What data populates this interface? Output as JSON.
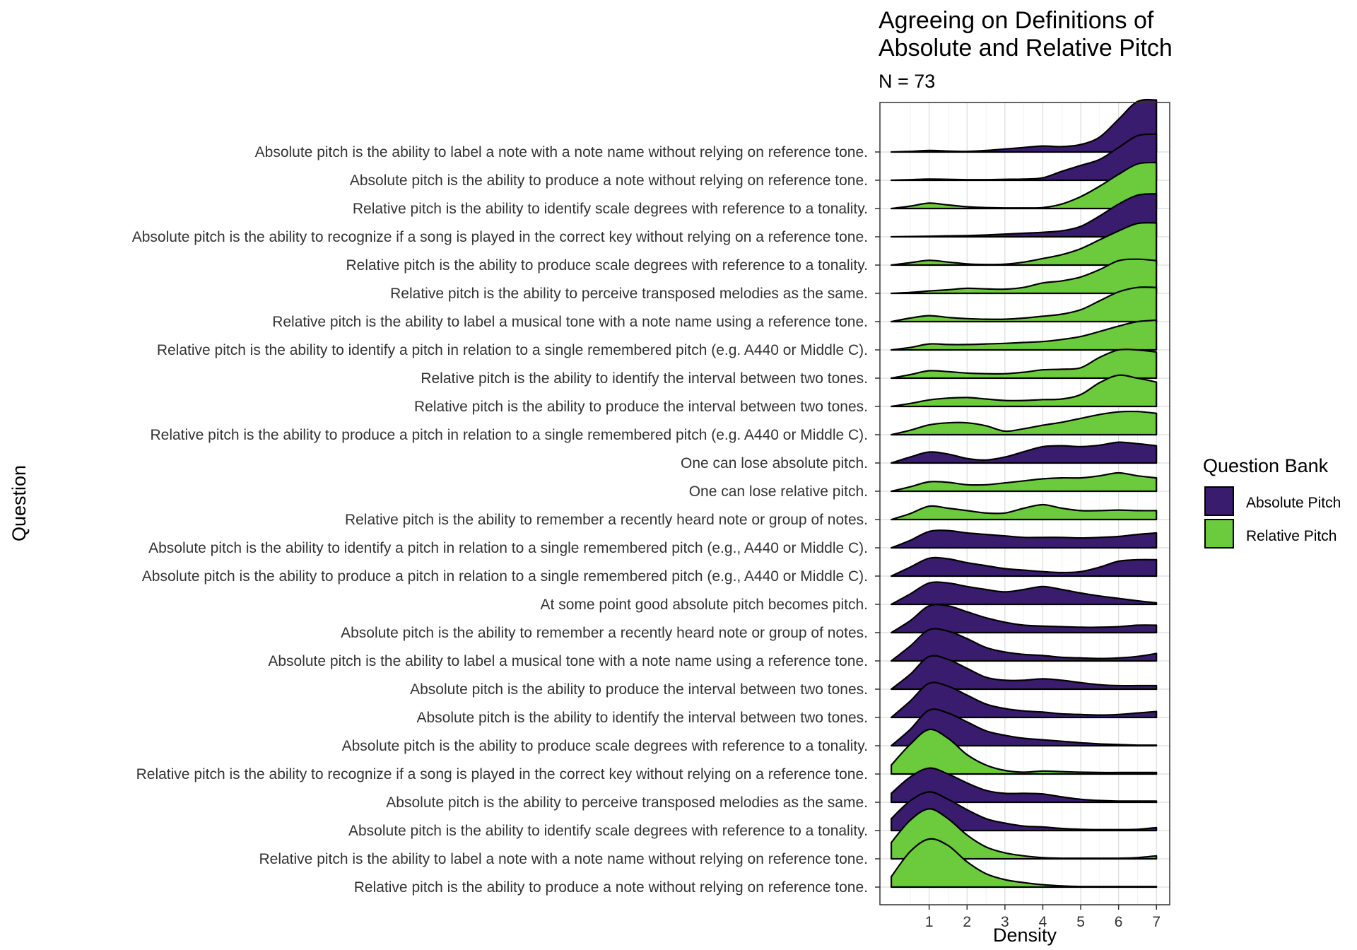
{
  "chart_data": {
    "type": "ridgeline",
    "title_lines": [
      "Agreeing on Definitions of",
      "Absolute and Relative Pitch"
    ],
    "subtitle": "N =  73",
    "xlabel": "Density",
    "ylabel": "Question",
    "x_ticks": [
      1,
      2,
      3,
      4,
      5,
      6,
      7
    ],
    "xlim": [
      -0.3,
      7.35
    ],
    "grid": true,
    "legend": {
      "title": "Question Bank",
      "position": "right",
      "entries": [
        {
          "name": "Absolute Pitch",
          "color": "#3a1c6e"
        },
        {
          "name": "Relative Pitch",
          "color": "#6bcb3d"
        }
      ]
    },
    "density_x": [
      0,
      0.5,
      1,
      1.5,
      2,
      2.5,
      3,
      3.5,
      4,
      4.5,
      5,
      5.5,
      6,
      6.5,
      7
    ],
    "rows": [
      {
        "label": "Absolute pitch is the ability to label a note with a note name without relying on reference tone.",
        "series": "Absolute Pitch",
        "density": [
          0,
          0.02,
          0.05,
          0.03,
          0.02,
          0.05,
          0.1,
          0.15,
          0.2,
          0.18,
          0.25,
          0.5,
          1.1,
          1.7,
          1.75
        ]
      },
      {
        "label": "Absolute pitch is the ability to produce a note without relying on reference tone.",
        "series": "Absolute Pitch",
        "density": [
          0,
          0.02,
          0.04,
          0.03,
          0.02,
          0.02,
          0.03,
          0.04,
          0.08,
          0.3,
          0.5,
          0.7,
          1.1,
          1.5,
          1.55
        ]
      },
      {
        "label": "Relative pitch is the ability to identify scale degrees with reference to a tonality.",
        "series": "Relative Pitch",
        "density": [
          0,
          0.08,
          0.18,
          0.12,
          0.06,
          0.03,
          0.02,
          0.02,
          0.03,
          0.15,
          0.4,
          0.75,
          1.15,
          1.5,
          1.55
        ]
      },
      {
        "label": "Absolute pitch is the ability to recognize if a song is played in the correct key without relying on a reference tone.",
        "series": "Absolute Pitch",
        "density": [
          0,
          0.01,
          0.02,
          0.03,
          0.04,
          0.06,
          0.09,
          0.12,
          0.15,
          0.2,
          0.35,
          0.7,
          1.1,
          1.4,
          1.45
        ]
      },
      {
        "label": "Relative pitch is the ability to produce scale degrees with reference to a tonality.",
        "series": "Relative Pitch",
        "density": [
          0,
          0.08,
          0.16,
          0.1,
          0.04,
          0.02,
          0.03,
          0.1,
          0.22,
          0.35,
          0.55,
          0.85,
          1.15,
          1.4,
          1.42
        ]
      },
      {
        "label": "Relative pitch is the ability to perceive transposed melodies as the same.",
        "series": "Relative Pitch",
        "density": [
          0,
          0.03,
          0.08,
          0.12,
          0.17,
          0.15,
          0.14,
          0.2,
          0.35,
          0.42,
          0.55,
          0.8,
          1.1,
          1.15,
          1.1
        ]
      },
      {
        "label": "Relative pitch is the ability to label a musical tone with a note name using a reference tone.",
        "series": "Relative Pitch",
        "density": [
          0,
          0.12,
          0.2,
          0.14,
          0.1,
          0.08,
          0.08,
          0.12,
          0.18,
          0.25,
          0.4,
          0.7,
          1.0,
          1.15,
          1.15
        ]
      },
      {
        "label": "Relative pitch is the ability to identify a pitch in relation to a single remembered pitch (e.g.  A440 or Middle C).",
        "series": "Relative Pitch",
        "density": [
          0,
          0.08,
          0.2,
          0.18,
          0.18,
          0.2,
          0.22,
          0.25,
          0.28,
          0.35,
          0.45,
          0.62,
          0.8,
          0.95,
          1.0
        ]
      },
      {
        "label": "Relative pitch is the ability to identify the interval between two tones.",
        "series": "Relative Pitch",
        "density": [
          0,
          0.12,
          0.25,
          0.22,
          0.17,
          0.15,
          0.15,
          0.2,
          0.28,
          0.3,
          0.35,
          0.7,
          0.95,
          0.95,
          0.88
        ]
      },
      {
        "label": "Relative pitch is the ability to produce the interval between two tones.",
        "series": "Relative Pitch",
        "density": [
          0,
          0.1,
          0.22,
          0.28,
          0.3,
          0.25,
          0.2,
          0.2,
          0.23,
          0.25,
          0.4,
          0.8,
          1.05,
          0.95,
          0.82
        ]
      },
      {
        "label": "Relative pitch is the ability to produce a pitch in relation to a single remembered pitch (e.g. A440 or Middle C).",
        "series": "Relative Pitch",
        "density": [
          0,
          0.15,
          0.33,
          0.4,
          0.4,
          0.3,
          0.12,
          0.2,
          0.32,
          0.42,
          0.55,
          0.68,
          0.77,
          0.78,
          0.72
        ]
      },
      {
        "label": "One can lose absolute pitch.",
        "series": "Absolute Pitch",
        "density": [
          0,
          0.2,
          0.37,
          0.3,
          0.15,
          0.1,
          0.2,
          0.38,
          0.55,
          0.58,
          0.55,
          0.6,
          0.7,
          0.65,
          0.58
        ]
      },
      {
        "label": "One can lose relative pitch.",
        "series": "Relative Pitch",
        "density": [
          0,
          0.15,
          0.32,
          0.3,
          0.22,
          0.22,
          0.28,
          0.35,
          0.42,
          0.45,
          0.45,
          0.52,
          0.62,
          0.52,
          0.45
        ]
      },
      {
        "label": "Relative pitch is the ability to remember a recently heard note or group of notes.",
        "series": "Relative Pitch",
        "density": [
          0,
          0.2,
          0.45,
          0.38,
          0.3,
          0.22,
          0.22,
          0.38,
          0.5,
          0.38,
          0.3,
          0.3,
          0.32,
          0.3,
          0.3
        ]
      },
      {
        "label": "Absolute pitch is the ability to identify a pitch in relation to a single remembered pitch (e.g., A440 or Middle C).",
        "series": "Absolute Pitch",
        "density": [
          0,
          0.25,
          0.55,
          0.58,
          0.5,
          0.45,
          0.4,
          0.35,
          0.35,
          0.35,
          0.33,
          0.35,
          0.38,
          0.45,
          0.5
        ]
      },
      {
        "label": "Absolute pitch is the ability to produce a pitch in relation to a single remembered pitch (e.g., A440 or Middle C).",
        "series": "Absolute Pitch",
        "density": [
          0,
          0.3,
          0.6,
          0.58,
          0.45,
          0.35,
          0.25,
          0.2,
          0.15,
          0.12,
          0.15,
          0.3,
          0.5,
          0.55,
          0.55
        ]
      },
      {
        "label": "At some point good absolute pitch becomes pitch.",
        "series": "Absolute Pitch",
        "density": [
          0,
          0.35,
          0.72,
          0.72,
          0.6,
          0.5,
          0.42,
          0.5,
          0.6,
          0.5,
          0.38,
          0.28,
          0.2,
          0.12,
          0.05
        ]
      },
      {
        "label": "Absolute pitch is the ability to remember a recently heard note or group of notes.",
        "series": "Absolute Pitch",
        "density": [
          0,
          0.4,
          0.9,
          0.9,
          0.7,
          0.5,
          0.35,
          0.25,
          0.22,
          0.2,
          0.18,
          0.18,
          0.2,
          0.25,
          0.25
        ]
      },
      {
        "label": "Absolute pitch is the ability to label a musical tone with a note name using a reference tone.",
        "series": "Absolute Pitch",
        "density": [
          0,
          0.5,
          1.05,
          1.0,
          0.75,
          0.45,
          0.3,
          0.22,
          0.18,
          0.12,
          0.1,
          0.08,
          0.1,
          0.15,
          0.25
        ]
      },
      {
        "label": "Absolute pitch is the ability to produce the interval between two tones.",
        "series": "Absolute Pitch",
        "density": [
          0,
          0.5,
          1.1,
          1.0,
          0.7,
          0.4,
          0.3,
          0.3,
          0.35,
          0.3,
          0.22,
          0.15,
          0.12,
          0.12,
          0.12
        ]
      },
      {
        "label": "Absolute pitch is the ability to identify the interval between two tones.",
        "series": "Absolute Pitch",
        "density": [
          0,
          0.55,
          1.15,
          1.05,
          0.75,
          0.45,
          0.3,
          0.22,
          0.18,
          0.12,
          0.1,
          0.08,
          0.1,
          0.15,
          0.2
        ]
      },
      {
        "label": "Absolute pitch is the ability to produce scale degrees with reference to a tonality.",
        "series": "Absolute Pitch",
        "density": [
          0,
          0.55,
          1.2,
          1.1,
          0.8,
          0.5,
          0.35,
          0.25,
          0.2,
          0.15,
          0.1,
          0.06,
          0.04,
          0.02,
          0.02
        ]
      },
      {
        "label": "Relative pitch is the ability to recognize if a song is played in the correct key without relying on a reference tone.",
        "series": "Relative Pitch",
        "density": [
          0.3,
          1.0,
          1.5,
          1.2,
          0.65,
          0.3,
          0.12,
          0.06,
          0.1,
          0.08,
          0.06,
          0.05,
          0.05,
          0.05,
          0.05
        ]
      },
      {
        "label": "Absolute pitch is the ability to perceive transposed melodies as the same.",
        "series": "Absolute Pitch",
        "density": [
          0.3,
          0.85,
          1.15,
          0.95,
          0.65,
          0.4,
          0.3,
          0.3,
          0.28,
          0.18,
          0.1,
          0.06,
          0.04,
          0.04,
          0.04
        ]
      },
      {
        "label": "Absolute pitch is the ability to identify scale degrees with reference to a tonality.",
        "series": "Absolute Pitch",
        "density": [
          0.4,
          1.0,
          1.3,
          1.05,
          0.7,
          0.4,
          0.25,
          0.15,
          0.12,
          0.07,
          0.04,
          0.03,
          0.03,
          0.04,
          0.1
        ]
      },
      {
        "label": "Relative pitch is the ability to label a note with a note name without relying on reference tone.",
        "series": "Relative Pitch",
        "density": [
          0.55,
          1.3,
          1.68,
          1.35,
          0.8,
          0.4,
          0.2,
          0.1,
          0.04,
          0.02,
          0.02,
          0.02,
          0.02,
          0.04,
          0.1
        ]
      },
      {
        "label": "Relative pitch is the ability to produce a note without relying on reference tone.",
        "series": "Relative Pitch",
        "density": [
          0.35,
          1.2,
          1.62,
          1.4,
          0.85,
          0.45,
          0.25,
          0.15,
          0.08,
          0.04,
          0.02,
          0.02,
          0.02,
          0.02,
          0.02
        ]
      }
    ]
  }
}
